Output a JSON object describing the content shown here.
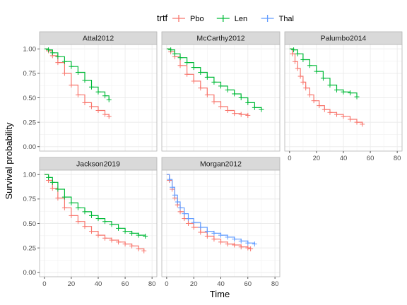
{
  "chart_data": {
    "type": "line",
    "subtype": "kaplan-meier-survival-curves",
    "xlabel": "Time",
    "ylabel": "Survival probability",
    "xlim": [
      0,
      80
    ],
    "ylim": [
      0,
      1
    ],
    "xticks": [
      0,
      20,
      40,
      60,
      80
    ],
    "yticks": [
      0.0,
      0.25,
      0.5,
      0.75,
      1.0
    ],
    "ytick_labels": [
      "0.00",
      "0.25",
      "0.50",
      "0.75",
      "1.00"
    ],
    "grid": true,
    "legend": {
      "title": "trtf",
      "placement": "top",
      "entries": [
        {
          "name": "Pbo",
          "color": "#F8766D"
        },
        {
          "name": "Len",
          "color": "#00BA38"
        },
        {
          "name": "Thal",
          "color": "#619CFF"
        }
      ]
    },
    "panels": [
      {
        "title": "Attal2012",
        "series": [
          {
            "name": "Pbo",
            "points": [
              [
                0,
                1.0
              ],
              [
                3,
                0.98
              ],
              [
                6,
                0.93
              ],
              [
                10,
                0.86
              ],
              [
                15,
                0.75
              ],
              [
                20,
                0.63
              ],
              [
                25,
                0.53
              ],
              [
                30,
                0.45
              ],
              [
                35,
                0.41
              ],
              [
                40,
                0.37
              ],
              [
                45,
                0.33
              ],
              [
                48,
                0.31
              ]
            ]
          },
          {
            "name": "Len",
            "points": [
              [
                0,
                1.0
              ],
              [
                3,
                0.99
              ],
              [
                6,
                0.96
              ],
              [
                10,
                0.92
              ],
              [
                15,
                0.87
              ],
              [
                20,
                0.82
              ],
              [
                25,
                0.76
              ],
              [
                30,
                0.68
              ],
              [
                35,
                0.61
              ],
              [
                40,
                0.56
              ],
              [
                45,
                0.52
              ],
              [
                48,
                0.48
              ]
            ]
          }
        ]
      },
      {
        "title": "McCarthy2012",
        "series": [
          {
            "name": "Pbo",
            "points": [
              [
                0,
                1.0
              ],
              [
                3,
                0.97
              ],
              [
                6,
                0.92
              ],
              [
                10,
                0.83
              ],
              [
                15,
                0.74
              ],
              [
                20,
                0.67
              ],
              [
                25,
                0.6
              ],
              [
                30,
                0.53
              ],
              [
                35,
                0.46
              ],
              [
                40,
                0.41
              ],
              [
                45,
                0.37
              ],
              [
                50,
                0.34
              ],
              [
                55,
                0.33
              ],
              [
                60,
                0.32
              ]
            ]
          },
          {
            "name": "Len",
            "points": [
              [
                0,
                1.0
              ],
              [
                3,
                0.99
              ],
              [
                6,
                0.95
              ],
              [
                10,
                0.91
              ],
              [
                15,
                0.86
              ],
              [
                20,
                0.81
              ],
              [
                25,
                0.76
              ],
              [
                30,
                0.71
              ],
              [
                35,
                0.66
              ],
              [
                40,
                0.62
              ],
              [
                45,
                0.58
              ],
              [
                50,
                0.54
              ],
              [
                55,
                0.5
              ],
              [
                60,
                0.45
              ],
              [
                65,
                0.4
              ],
              [
                70,
                0.38
              ]
            ]
          }
        ]
      },
      {
        "title": "Palumbo2014",
        "series": [
          {
            "name": "Pbo",
            "points": [
              [
                0,
                1.0
              ],
              [
                2,
                0.95
              ],
              [
                4,
                0.87
              ],
              [
                6,
                0.8
              ],
              [
                8,
                0.72
              ],
              [
                10,
                0.66
              ],
              [
                12,
                0.6
              ],
              [
                15,
                0.53
              ],
              [
                18,
                0.47
              ],
              [
                22,
                0.42
              ],
              [
                26,
                0.38
              ],
              [
                30,
                0.35
              ],
              [
                35,
                0.33
              ],
              [
                40,
                0.31
              ],
              [
                45,
                0.28
              ],
              [
                50,
                0.25
              ],
              [
                54,
                0.23
              ]
            ]
          },
          {
            "name": "Len",
            "points": [
              [
                0,
                1.0
              ],
              [
                3,
                0.99
              ],
              [
                6,
                0.95
              ],
              [
                10,
                0.89
              ],
              [
                15,
                0.83
              ],
              [
                20,
                0.77
              ],
              [
                25,
                0.7
              ],
              [
                30,
                0.63
              ],
              [
                35,
                0.58
              ],
              [
                40,
                0.56
              ],
              [
                45,
                0.55
              ],
              [
                50,
                0.51
              ]
            ]
          }
        ]
      },
      {
        "title": "Jackson2019",
        "series": [
          {
            "name": "Pbo",
            "points": [
              [
                0,
                1.0
              ],
              [
                3,
                0.94
              ],
              [
                6,
                0.86
              ],
              [
                10,
                0.76
              ],
              [
                15,
                0.66
              ],
              [
                20,
                0.58
              ],
              [
                25,
                0.52
              ],
              [
                30,
                0.47
              ],
              [
                35,
                0.42
              ],
              [
                40,
                0.38
              ],
              [
                45,
                0.35
              ],
              [
                50,
                0.33
              ],
              [
                55,
                0.31
              ],
              [
                60,
                0.29
              ],
              [
                65,
                0.27
              ],
              [
                70,
                0.24
              ],
              [
                74,
                0.22
              ]
            ]
          },
          {
            "name": "Len",
            "points": [
              [
                0,
                1.0
              ],
              [
                3,
                0.97
              ],
              [
                6,
                0.92
              ],
              [
                10,
                0.85
              ],
              [
                15,
                0.77
              ],
              [
                20,
                0.71
              ],
              [
                25,
                0.66
              ],
              [
                30,
                0.62
              ],
              [
                35,
                0.58
              ],
              [
                40,
                0.55
              ],
              [
                45,
                0.52
              ],
              [
                50,
                0.49
              ],
              [
                55,
                0.45
              ],
              [
                60,
                0.42
              ],
              [
                65,
                0.4
              ],
              [
                70,
                0.38
              ],
              [
                75,
                0.37
              ]
            ]
          }
        ]
      },
      {
        "title": "Morgan2012",
        "series": [
          {
            "name": "Pbo",
            "points": [
              [
                0,
                1.0
              ],
              [
                2,
                0.94
              ],
              [
                4,
                0.85
              ],
              [
                6,
                0.76
              ],
              [
                8,
                0.69
              ],
              [
                10,
                0.62
              ],
              [
                13,
                0.55
              ],
              [
                16,
                0.5
              ],
              [
                20,
                0.46
              ],
              [
                25,
                0.41
              ],
              [
                30,
                0.37
              ],
              [
                35,
                0.34
              ],
              [
                40,
                0.31
              ],
              [
                45,
                0.29
              ],
              [
                50,
                0.28
              ],
              [
                55,
                0.26
              ],
              [
                60,
                0.25
              ],
              [
                62,
                0.24
              ]
            ]
          },
          {
            "name": "Thal",
            "points": [
              [
                0,
                1.0
              ],
              [
                2,
                0.95
              ],
              [
                4,
                0.87
              ],
              [
                6,
                0.79
              ],
              [
                8,
                0.72
              ],
              [
                10,
                0.66
              ],
              [
                13,
                0.6
              ],
              [
                16,
                0.55
              ],
              [
                20,
                0.51
              ],
              [
                25,
                0.46
              ],
              [
                30,
                0.42
              ],
              [
                35,
                0.4
              ],
              [
                40,
                0.38
              ],
              [
                45,
                0.36
              ],
              [
                50,
                0.34
              ],
              [
                55,
                0.32
              ],
              [
                60,
                0.3
              ],
              [
                65,
                0.29
              ]
            ]
          }
        ]
      }
    ]
  }
}
